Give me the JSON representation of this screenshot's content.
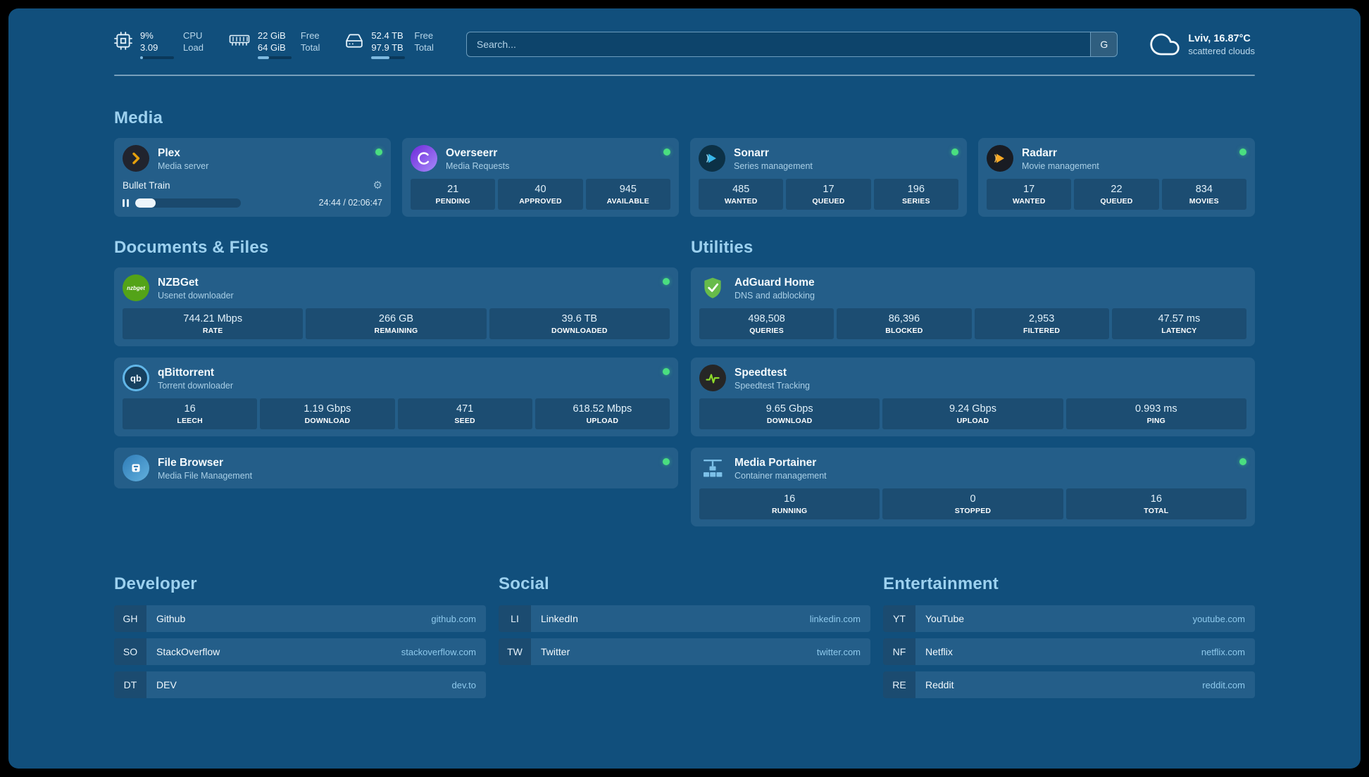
{
  "colors": {
    "status_green": "#4ade80",
    "accent_blue": "#7db9e0",
    "background": "#114f7c"
  },
  "topbar": {
    "cpu": {
      "usage": "9%",
      "load": "3.09",
      "label1": "CPU",
      "label2": "Load",
      "progress_pct": 9
    },
    "memory": {
      "free": "22 GiB",
      "total": "64 GiB",
      "label1": "Free",
      "label2": "Total",
      "progress_pct": 34
    },
    "disk": {
      "free": "52.4 TB",
      "total": "97.9 TB",
      "label1": "Free",
      "label2": "Total",
      "progress_pct": 53
    },
    "search": {
      "placeholder": "Search...",
      "provider_button": "G"
    },
    "weather": {
      "location": "Lviv, 16.87°C",
      "condition": "scattered clouds"
    }
  },
  "media": {
    "title": "Media",
    "plex": {
      "name": "Plex",
      "subtitle": "Media server",
      "now_playing": "Bullet Train",
      "time": "24:44 / 02:06:47",
      "progress_pct": 19
    },
    "overseerr": {
      "name": "Overseerr",
      "subtitle": "Media Requests",
      "stats": [
        {
          "value": "21",
          "label": "PENDING"
        },
        {
          "value": "40",
          "label": "APPROVED"
        },
        {
          "value": "945",
          "label": "AVAILABLE"
        }
      ]
    },
    "sonarr": {
      "name": "Sonarr",
      "subtitle": "Series management",
      "stats": [
        {
          "value": "485",
          "label": "WANTED"
        },
        {
          "value": "17",
          "label": "QUEUED"
        },
        {
          "value": "196",
          "label": "SERIES"
        }
      ]
    },
    "radarr": {
      "name": "Radarr",
      "subtitle": "Movie management",
      "stats": [
        {
          "value": "17",
          "label": "WANTED"
        },
        {
          "value": "22",
          "label": "QUEUED"
        },
        {
          "value": "834",
          "label": "MOVIES"
        }
      ]
    }
  },
  "documents": {
    "title": "Documents & Files",
    "nzbget": {
      "name": "NZBGet",
      "subtitle": "Usenet downloader",
      "stats": [
        {
          "value": "744.21 Mbps",
          "label": "RATE"
        },
        {
          "value": "266 GB",
          "label": "REMAINING"
        },
        {
          "value": "39.6 TB",
          "label": "DOWNLOADED"
        }
      ]
    },
    "qbittorrent": {
      "name": "qBittorrent",
      "subtitle": "Torrent downloader",
      "stats": [
        {
          "value": "16",
          "label": "LEECH"
        },
        {
          "value": "1.19 Gbps",
          "label": "DOWNLOAD"
        },
        {
          "value": "471",
          "label": "SEED"
        },
        {
          "value": "618.52 Mbps",
          "label": "UPLOAD"
        }
      ]
    },
    "filebrowser": {
      "name": "File Browser",
      "subtitle": "Media File Management"
    }
  },
  "utilities": {
    "title": "Utilities",
    "adguard": {
      "name": "AdGuard Home",
      "subtitle": "DNS and adblocking",
      "stats": [
        {
          "value": "498,508",
          "label": "QUERIES"
        },
        {
          "value": "86,396",
          "label": "BLOCKED"
        },
        {
          "value": "2,953",
          "label": "FILTERED"
        },
        {
          "value": "47.57 ms",
          "label": "LATENCY"
        }
      ]
    },
    "speedtest": {
      "name": "Speedtest",
      "subtitle": "Speedtest Tracking",
      "stats": [
        {
          "value": "9.65 Gbps",
          "label": "DOWNLOAD"
        },
        {
          "value": "9.24 Gbps",
          "label": "UPLOAD"
        },
        {
          "value": "0.993 ms",
          "label": "PING"
        }
      ]
    },
    "portainer": {
      "name": "Media Portainer",
      "subtitle": "Container management",
      "stats": [
        {
          "value": "16",
          "label": "RUNNING"
        },
        {
          "value": "0",
          "label": "STOPPED"
        },
        {
          "value": "16",
          "label": "TOTAL"
        }
      ]
    }
  },
  "bookmarks": {
    "developer": {
      "title": "Developer",
      "items": [
        {
          "abbr": "GH",
          "name": "Github",
          "domain": "github.com"
        },
        {
          "abbr": "SO",
          "name": "StackOverflow",
          "domain": "stackoverflow.com"
        },
        {
          "abbr": "DT",
          "name": "DEV",
          "domain": "dev.to"
        }
      ]
    },
    "social": {
      "title": "Social",
      "items": [
        {
          "abbr": "LI",
          "name": "LinkedIn",
          "domain": "linkedin.com"
        },
        {
          "abbr": "TW",
          "name": "Twitter",
          "domain": "twitter.com"
        }
      ]
    },
    "entertainment": {
      "title": "Entertainment",
      "items": [
        {
          "abbr": "YT",
          "name": "YouTube",
          "domain": "youtube.com"
        },
        {
          "abbr": "NF",
          "name": "Netflix",
          "domain": "netflix.com"
        },
        {
          "abbr": "RE",
          "name": "Reddit",
          "domain": "reddit.com"
        }
      ]
    }
  }
}
